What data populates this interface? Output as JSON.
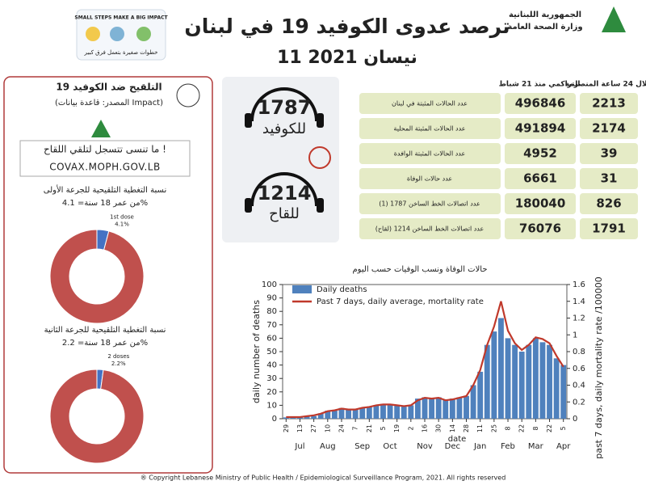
{
  "header": {
    "title": "ترصد عدوى الكوفيد 19 في لبنان",
    "date": "11 نيسان 2021",
    "republic": "الجمهورية اللبنانية",
    "ministry": "وزارة الصحة العامة",
    "campaign": "SMALL STEPS MAKE A BIG IMPACT",
    "campaign_ar": "خطوات صغيرة بتعمل فرق كبير"
  },
  "hotlines": [
    {
      "number": 1787,
      "label": "للكوفيد"
    },
    {
      "number": 1214,
      "label": "للقاح"
    }
  ],
  "vaccination": {
    "title": "التلقيح ضد الكوفيد 19",
    "source": "(المصدر: قاعدة بيانات Impact)",
    "reminder": "ما تنسى تتسجل لتلقي اللقاح !",
    "website": "COVAX.MOPH.GOV.LB"
  },
  "table": {
    "headers": [
      "خلال 24 ساعة المنصرمة",
      "التراكمي منذ 21 شباط"
    ],
    "rows": [
      [
        "عدد الحالات المثبتة في لبنان",
        2213,
        496846
      ],
      [
        "عدد الحالات المثبتة المحلية",
        2174,
        491894
      ],
      [
        "عدد الحالات المثبتة الوافدة",
        39,
        4952
      ],
      [
        "عدد حالات الوفاة",
        31,
        6661
      ],
      [
        "عدد اتصالات الخط الساخن 1787 (1)",
        826,
        180040
      ],
      [
        "عدد اتصالات الخط الساخن 1214 (لقاح)",
        1791,
        76076
      ]
    ]
  },
  "chart_data": [
    {
      "type": "bar_line",
      "title": "حالات الوفاة ونسب الوفيات حسب اليوم",
      "xlabel": "date",
      "ylabel": "daily number of deaths",
      "y2label": "past 7 days, daily mortality rate /100000",
      "x": [
        "Jun 29",
        "Jul 6",
        "Jul 13",
        "Jul 20",
        "Jul 27",
        "Aug 3",
        "Aug 10",
        "Aug 17",
        "Aug 24",
        "Aug 31",
        "Sep 7",
        "Sep 14",
        "Sep 21",
        "Sep 28",
        "Oct 5",
        "Oct 12",
        "Oct 19",
        "Oct 26",
        "Nov 2",
        "Nov 9",
        "Nov 16",
        "Nov 23",
        "Nov 30",
        "Dec 7",
        "Dec 14",
        "Dec 21",
        "Dec 28",
        "Jan 4",
        "Jan 11",
        "Jan 18",
        "Jan 25",
        "Feb 1",
        "Feb 8",
        "Feb 15",
        "Feb 22",
        "Mar 1",
        "Mar 8",
        "Mar 15",
        "Mar 22",
        "Mar 29",
        "Apr 5"
      ],
      "series": [
        {
          "name": "Daily deaths",
          "type": "bar",
          "color": "#4f81bd",
          "values": [
            1,
            1,
            1,
            2,
            2,
            4,
            6,
            6,
            8,
            7,
            7,
            8,
            9,
            10,
            11,
            11,
            10,
            9,
            10,
            15,
            16,
            15,
            16,
            14,
            15,
            16,
            17,
            25,
            35,
            55,
            65,
            75,
            60,
            55,
            50,
            55,
            60,
            57,
            55,
            45,
            40
          ]
        },
        {
          "name": "Past 7 days, daily average, mortality rate",
          "type": "line",
          "axis": "y2",
          "color": "#c0392b",
          "values": [
            0.02,
            0.02,
            0.02,
            0.03,
            0.04,
            0.06,
            0.09,
            0.1,
            0.12,
            0.11,
            0.11,
            0.13,
            0.14,
            0.16,
            0.17,
            0.17,
            0.16,
            0.15,
            0.16,
            0.22,
            0.25,
            0.24,
            0.25,
            0.22,
            0.23,
            0.25,
            0.27,
            0.4,
            0.58,
            0.88,
            1.1,
            1.4,
            1.05,
            0.9,
            0.82,
            0.88,
            0.97,
            0.95,
            0.9,
            0.75,
            0.62
          ]
        }
      ],
      "ylim": [
        0,
        100
      ],
      "yticks": [
        0,
        10,
        20,
        30,
        40,
        50,
        60,
        70,
        80,
        90,
        100
      ],
      "y2lim": [
        0,
        1.6
      ],
      "y2ticks": [
        0,
        0.2,
        0.4,
        0.6,
        0.8,
        1,
        1.2,
        1.4,
        1.6
      ],
      "xticks": [
        {
          "value": "Jun 29",
          "label": "29"
        },
        {
          "value": "Jul 13",
          "label": "13"
        },
        {
          "value": "Jul 27",
          "label": "27"
        },
        {
          "value": "Aug 10",
          "label": "10"
        },
        {
          "value": "Aug 24",
          "label": "24"
        },
        {
          "value": "Sep 7",
          "label": "7"
        },
        {
          "value": "Sep 21",
          "label": "21"
        },
        {
          "value": "Oct 5",
          "label": "5"
        },
        {
          "value": "Oct 19",
          "label": "19"
        },
        {
          "value": "Nov 2",
          "label": "2"
        },
        {
          "value": "Nov 16",
          "label": "16"
        },
        {
          "value": "Nov 30",
          "label": "30"
        },
        {
          "value": "Dec 14",
          "label": "14"
        },
        {
          "value": "Dec 28",
          "label": "28"
        },
        {
          "value": "Jan 11",
          "label": "11"
        },
        {
          "value": "Jan 25",
          "label": "25"
        },
        {
          "value": "Feb 8",
          "label": "8"
        },
        {
          "value": "Feb 22",
          "label": "22"
        },
        {
          "value": "Mar 8",
          "label": "8"
        },
        {
          "value": "Mar 22",
          "label": "22"
        },
        {
          "value": "Apr 5",
          "label": "5"
        }
      ],
      "month_ticks": [
        {
          "value": "Jul 13",
          "label": "Jul"
        },
        {
          "value": "Aug 10",
          "label": "Aug"
        },
        {
          "value": "Sep 14",
          "label": "Sep"
        },
        {
          "value": "Oct 12",
          "label": "Oct"
        },
        {
          "value": "Nov 16",
          "label": "Nov"
        },
        {
          "value": "Dec 14",
          "label": "Dec"
        },
        {
          "value": "Jan 11",
          "label": "Jan"
        },
        {
          "value": "Feb 8",
          "label": "Feb"
        },
        {
          "value": "Mar 8",
          "label": "Mar"
        },
        {
          "value": "Apr 5",
          "label": "Apr"
        }
      ],
      "legend": "upper left"
    },
    {
      "type": "pie",
      "title": "نسبة التغطية التلقيحية للجرعة الأولى",
      "subtitle": "من عمر 18 سنة= 4.1%",
      "categories": [
        "1st dose",
        null
      ],
      "values": [
        4.1,
        95.9
      ],
      "value_labels": [
        "4.1%",
        null
      ],
      "colors": [
        "#4472c4",
        "#c0504d"
      ]
    },
    {
      "type": "pie",
      "title": "نسبة التغطية التلقيحية للجرعة الثانية",
      "subtitle": "من عمر 18 سنة= 2.2%",
      "categories": [
        "2 doses",
        null
      ],
      "values": [
        2.2,
        97.8
      ],
      "value_labels": [
        "2.2%",
        null
      ],
      "colors": [
        "#4472c4",
        "#c0504d"
      ]
    }
  ],
  "footer": "® Copyright Lebanese Ministry of Public Health / Epidemiological Surveillance Program, 2021. All rights reserved"
}
